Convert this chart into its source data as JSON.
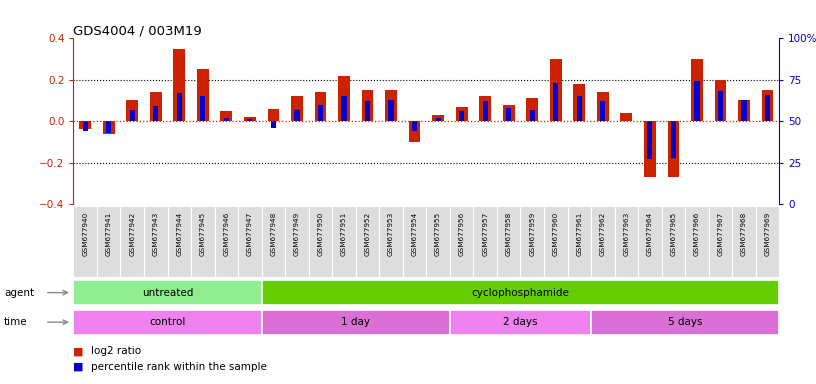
{
  "title": "GDS4004 / 003M19",
  "samples": [
    "GSM677940",
    "GSM677941",
    "GSM677942",
    "GSM677943",
    "GSM677944",
    "GSM677945",
    "GSM677946",
    "GSM677947",
    "GSM677948",
    "GSM677949",
    "GSM677950",
    "GSM677951",
    "GSM677952",
    "GSM677953",
    "GSM677954",
    "GSM677955",
    "GSM677956",
    "GSM677957",
    "GSM677958",
    "GSM677959",
    "GSM677960",
    "GSM677961",
    "GSM677962",
    "GSM677963",
    "GSM677964",
    "GSM677965",
    "GSM677966",
    "GSM677967",
    "GSM677968",
    "GSM677969"
  ],
  "log2_ratio": [
    -0.04,
    -0.06,
    0.1,
    0.14,
    0.35,
    0.25,
    0.05,
    0.02,
    0.06,
    0.12,
    0.14,
    0.22,
    0.15,
    0.15,
    -0.1,
    0.03,
    0.07,
    0.12,
    0.08,
    0.11,
    0.3,
    0.18,
    0.14,
    0.04,
    -0.27,
    -0.27,
    0.3,
    0.2,
    0.1,
    0.15
  ],
  "percentile": [
    44,
    43,
    57,
    59,
    67,
    65,
    52,
    51,
    46,
    57,
    60,
    65,
    62,
    63,
    44,
    52,
    56,
    62,
    58,
    57,
    73,
    65,
    62,
    50,
    27,
    28,
    74,
    68,
    63,
    66
  ],
  "ylim_left": [
    -0.4,
    0.4
  ],
  "ylim_right": [
    0,
    100
  ],
  "yticks_left": [
    -0.4,
    -0.2,
    0.0,
    0.2,
    0.4
  ],
  "yticks_right": [
    0,
    25,
    50,
    75,
    100
  ],
  "ytick_labels_right": [
    "0",
    "25",
    "50",
    "75",
    "100%"
  ],
  "agent_groups": [
    {
      "label": "untreated",
      "start": 0,
      "end": 8,
      "color": "#90EE90"
    },
    {
      "label": "cyclophosphamide",
      "start": 8,
      "end": 30,
      "color": "#66CD00"
    }
  ],
  "time_groups": [
    {
      "label": "control",
      "start": 0,
      "end": 8,
      "color": "#EE82EE"
    },
    {
      "label": "1 day",
      "start": 8,
      "end": 16,
      "color": "#DA70D6"
    },
    {
      "label": "2 days",
      "start": 16,
      "end": 22,
      "color": "#EE82EE"
    },
    {
      "label": "5 days",
      "start": 22,
      "end": 30,
      "color": "#DA70D6"
    }
  ],
  "bar_color_red": "#CC2200",
  "bar_color_blue": "#0000CC",
  "bg_color": "#FFFFFF",
  "title_color": "#000000",
  "left_axis_color": "#CC2200",
  "right_axis_color": "#0000CC",
  "xtick_bg": "#DDDDDD",
  "legend_red_label": "log2 ratio",
  "legend_blue_label": "percentile rank within the sample",
  "agent_label": "agent",
  "time_label": "time"
}
